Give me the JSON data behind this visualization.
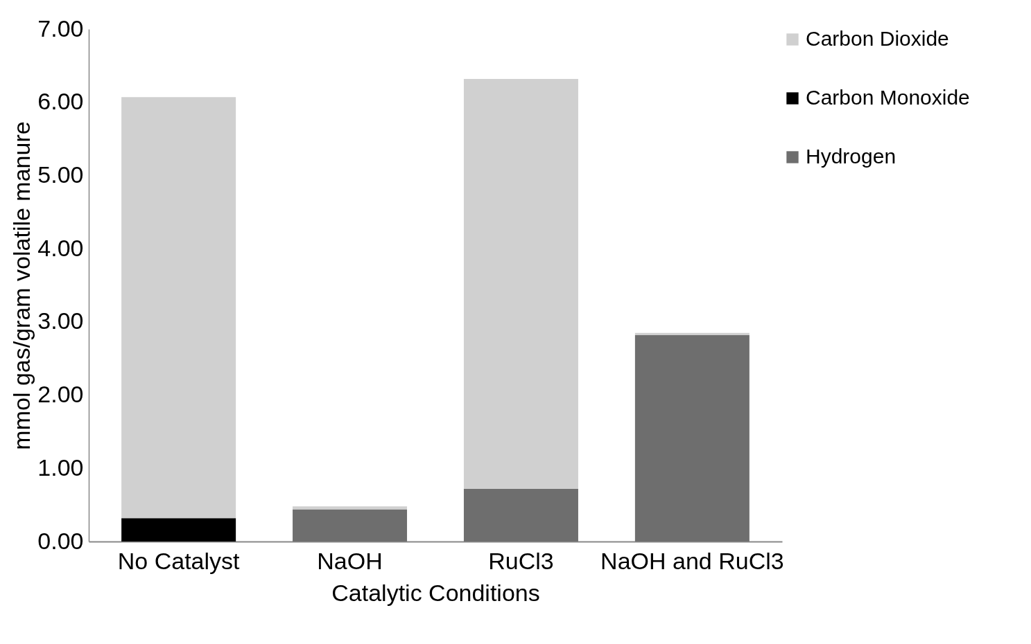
{
  "chart_data": {
    "type": "bar",
    "stacked": true,
    "xlabel": "Catalytic Conditions",
    "ylabel": "mmol gas/gram volatile manure",
    "categories": [
      "No Catalyst",
      "NaOH",
      "RuCl3",
      "NaOH and RuCl3"
    ],
    "series": [
      {
        "name": "Hydrogen",
        "color": "#6e6e6e",
        "values": [
          0,
          0.44,
          0.72,
          2.82
        ]
      },
      {
        "name": "Carbon Monoxide",
        "color": "#000000",
        "values": [
          0.32,
          0,
          0,
          0
        ]
      },
      {
        "name": "Carbon Dioxide",
        "color": "#d0d0d0",
        "values": [
          5.75,
          0.04,
          5.6,
          0.03
        ]
      }
    ],
    "ylim": [
      0,
      7
    ],
    "yticks": [
      {
        "value": 0,
        "label": "0.00"
      },
      {
        "value": 1,
        "label": "1.00"
      },
      {
        "value": 2,
        "label": "2.00"
      },
      {
        "value": 3,
        "label": "3.00"
      },
      {
        "value": 4,
        "label": "4.00"
      },
      {
        "value": 5,
        "label": "5.00"
      },
      {
        "value": 6,
        "label": "6.00"
      },
      {
        "value": 7,
        "label": "7.00"
      }
    ],
    "grid": false,
    "legend": "top right"
  }
}
